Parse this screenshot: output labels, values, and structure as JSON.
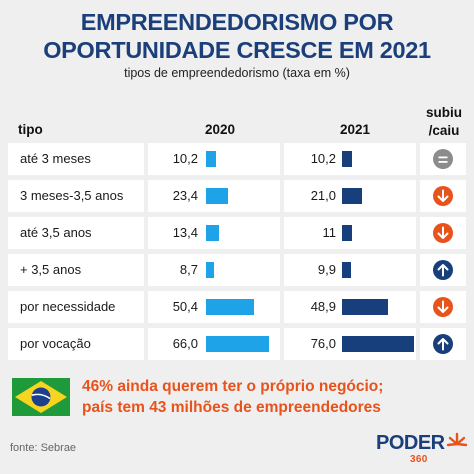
{
  "title_line1": "EMPREENDEDORISMO POR",
  "title_line2": "OPORTUNIDADE CRESCE EM 2021",
  "subtitle": "tipos de empreendedorismo (taxa em %)",
  "headers": {
    "tipo": "tipo",
    "y2020": "2020",
    "y2021": "2021",
    "change_line1": "subiu",
    "change_line2": "/caiu"
  },
  "chart_data": {
    "type": "table",
    "categories": [
      "até 3 meses",
      "3 meses-3,5 anos",
      "até 3,5 anos",
      "+ 3,5 anos",
      "por necessidade",
      "por vocação"
    ],
    "series": [
      {
        "name": "2020",
        "values": [
          10.2,
          23.4,
          13.4,
          8.7,
          50.4,
          66.0
        ],
        "labels": [
          "10,2",
          "23,4",
          "13,4",
          "8,7",
          "50,4",
          "66,0"
        ]
      },
      {
        "name": "2021",
        "values": [
          10.2,
          21.0,
          11,
          9.9,
          48.9,
          76.0
        ],
        "labels": [
          "10,2",
          "21,0",
          "11",
          "9,9",
          "48,9",
          "76,0"
        ]
      }
    ],
    "change": [
      "equal",
      "down",
      "down",
      "up",
      "down",
      "up"
    ]
  },
  "colors": {
    "bar2020": "#1ea3e8",
    "bar2021": "#173f7c",
    "equal": "#8c8c8c",
    "down": "#e8531c",
    "up": "#173f7c",
    "title": "#1b3f7a",
    "note": "#e8531c"
  },
  "icons": {
    "equal": "equal-icon",
    "down": "arrow-down-icon",
    "up": "arrow-up-icon"
  },
  "note_line1": "46% ainda querem ter o próprio negócio;",
  "note_line2": "país tem 43 milhões de empreendedores",
  "source": "fonte: Sebrae",
  "logo_word": "PODER",
  "logo_sub": "360"
}
